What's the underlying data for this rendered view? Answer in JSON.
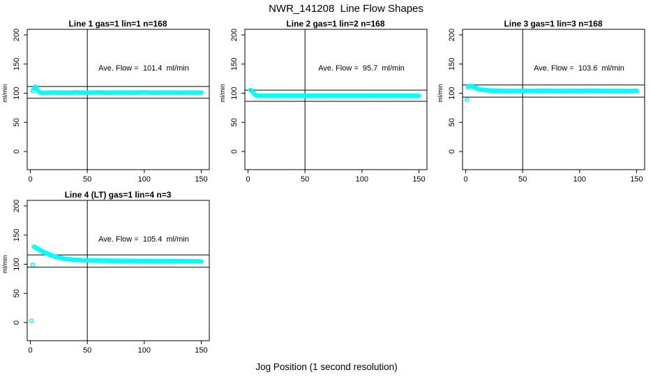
{
  "figure": {
    "title": "NWR_141208  Line Flow Shapes",
    "xlabel": "Jog Position (1 second resolution)",
    "ylabel": "ml/min",
    "point_color": "#00FFFF",
    "axis_color": "#000000"
  },
  "chart_data": [
    {
      "type": "scatter",
      "title": "Line 1 gas=1 lin=1 n=168",
      "line": 1,
      "gas": 1,
      "lin": 1,
      "n": 168,
      "ave_flow": 101.4,
      "ave_flow_label": "Ave. Flow =  101.4  ml/min",
      "ylabel": "ml/min",
      "xlim": [
        0,
        150
      ],
      "ylim": [
        0,
        200
      ],
      "x_ticks": [
        0,
        50,
        100,
        150
      ],
      "y_ticks": [
        0,
        50,
        100,
        150,
        200
      ],
      "vline_x": 50,
      "hlines": [
        111.5,
        91.3
      ],
      "x_step": 1,
      "anchors": [
        [
          2,
          104
        ],
        [
          3,
          108
        ],
        [
          4,
          111
        ],
        [
          5,
          109.5
        ],
        [
          6,
          106
        ],
        [
          7,
          103.5
        ],
        [
          8,
          102
        ],
        [
          9,
          101
        ],
        [
          10,
          100.5
        ],
        [
          15,
          100.8
        ],
        [
          20,
          101.2
        ],
        [
          30,
          100.8
        ],
        [
          40,
          101.3
        ],
        [
          50,
          100.9
        ],
        [
          60,
          101.3
        ],
        [
          70,
          100.9
        ],
        [
          80,
          101.2
        ],
        [
          90,
          101
        ],
        [
          100,
          101.3
        ],
        [
          110,
          100.9
        ],
        [
          120,
          101.2
        ],
        [
          130,
          101
        ],
        [
          140,
          101.2
        ],
        [
          150,
          101
        ]
      ],
      "outliers": []
    },
    {
      "type": "scatter",
      "title": "Line 2 gas=1 lin=2 n=168",
      "line": 2,
      "gas": 1,
      "lin": 2,
      "n": 168,
      "ave_flow": 95.7,
      "ave_flow_label": "Ave. Flow =  95.7  ml/min",
      "ylabel": "ml/min",
      "xlim": [
        0,
        150
      ],
      "ylim": [
        0,
        200
      ],
      "x_ticks": [
        0,
        50,
        100,
        150
      ],
      "y_ticks": [
        0,
        50,
        100,
        150,
        200
      ],
      "vline_x": 50,
      "hlines": [
        105.3,
        86.1
      ],
      "x_step": 1,
      "anchors": [
        [
          2,
          105.5
        ],
        [
          3,
          104.5
        ],
        [
          4,
          102
        ],
        [
          5,
          99.5
        ],
        [
          6,
          97.5
        ],
        [
          7,
          96.3
        ],
        [
          8,
          95.8
        ],
        [
          10,
          95.5
        ],
        [
          20,
          95.5
        ],
        [
          30,
          95.6
        ],
        [
          40,
          95.5
        ],
        [
          50,
          95.6
        ],
        [
          60,
          95.5
        ],
        [
          70,
          95.6
        ],
        [
          80,
          95.5
        ],
        [
          90,
          95.6
        ],
        [
          100,
          95.5
        ],
        [
          110,
          95.6
        ],
        [
          120,
          95.5
        ],
        [
          130,
          95.6
        ],
        [
          140,
          95.5
        ],
        [
          150,
          95.5
        ]
      ],
      "outliers": []
    },
    {
      "type": "scatter",
      "title": "Line 3 gas=1 lin=3 n=168",
      "line": 3,
      "gas": 1,
      "lin": 3,
      "n": 168,
      "ave_flow": 103.6,
      "ave_flow_label": "Ave. Flow =  103.6  ml/min",
      "ylabel": "ml/min",
      "xlim": [
        0,
        150
      ],
      "ylim": [
        0,
        200
      ],
      "x_ticks": [
        0,
        50,
        100,
        150
      ],
      "y_ticks": [
        0,
        50,
        100,
        150,
        200
      ],
      "vline_x": 50,
      "hlines": [
        114.0,
        93.2
      ],
      "x_step": 1,
      "anchors": [
        [
          2,
          110
        ],
        [
          3,
          112
        ],
        [
          4,
          112.5
        ],
        [
          5,
          112
        ],
        [
          6,
          111
        ],
        [
          8,
          109.5
        ],
        [
          10,
          108
        ],
        [
          12,
          106.8
        ],
        [
          15,
          105.8
        ],
        [
          20,
          104.8
        ],
        [
          25,
          104.4
        ],
        [
          30,
          104.2
        ],
        [
          40,
          104
        ],
        [
          50,
          104.2
        ],
        [
          60,
          104
        ],
        [
          70,
          104.3
        ],
        [
          80,
          104
        ],
        [
          90,
          104.2
        ],
        [
          100,
          104
        ],
        [
          110,
          104.3
        ],
        [
          120,
          104
        ],
        [
          130,
          104.2
        ],
        [
          140,
          104
        ],
        [
          150,
          104.1
        ]
      ],
      "outliers": [
        [
          1,
          89
        ]
      ]
    },
    {
      "type": "scatter",
      "title": "Line 4 (LT) gas=1 lin=4 n=3",
      "line": 4,
      "gas": 1,
      "lin": 4,
      "n": 3,
      "ave_flow": 105.4,
      "ave_flow_label": "Ave. Flow =  105.4  ml/min",
      "ylabel": "ml/min",
      "xlim": [
        0,
        150
      ],
      "ylim": [
        0,
        200
      ],
      "x_ticks": [
        0,
        50,
        100,
        150
      ],
      "y_ticks": [
        0,
        50,
        100,
        150,
        200
      ],
      "vline_x": 50,
      "hlines": [
        116.0,
        94.9
      ],
      "x_step": 1,
      "anchors": [
        [
          3,
          130
        ],
        [
          4,
          129
        ],
        [
          5,
          128
        ],
        [
          6,
          127
        ],
        [
          8,
          124.5
        ],
        [
          10,
          122.5
        ],
        [
          12,
          120.5
        ],
        [
          15,
          118
        ],
        [
          18,
          115.5
        ],
        [
          20,
          114
        ],
        [
          25,
          111.5
        ],
        [
          30,
          109.5
        ],
        [
          35,
          108.3
        ],
        [
          40,
          107.5
        ],
        [
          45,
          107
        ],
        [
          50,
          106.6
        ],
        [
          60,
          106.2
        ],
        [
          70,
          106
        ],
        [
          80,
          105.8
        ],
        [
          90,
          105.7
        ],
        [
          100,
          105.6
        ],
        [
          110,
          105.5
        ],
        [
          120,
          105.5
        ],
        [
          130,
          105.4
        ],
        [
          140,
          105.2
        ],
        [
          150,
          104.8
        ]
      ],
      "outliers": [
        [
          1,
          3
        ],
        [
          2,
          99
        ]
      ]
    }
  ]
}
